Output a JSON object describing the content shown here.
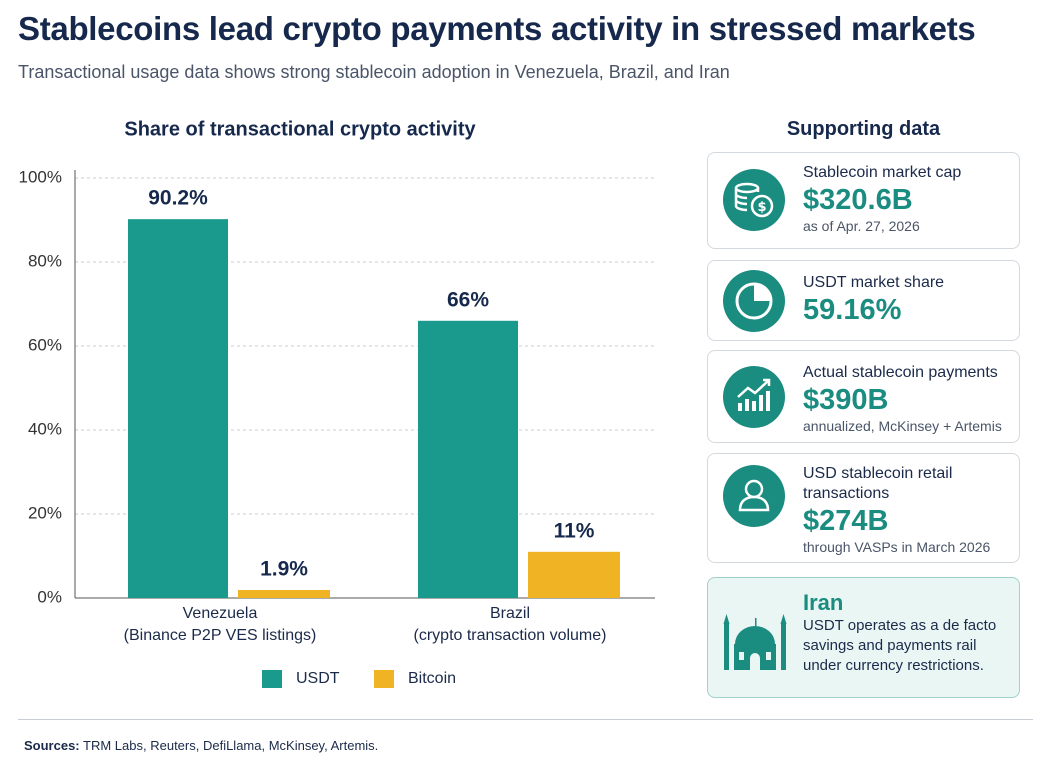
{
  "header": {
    "title": "Stablecoins lead crypto payments activity in stressed markets",
    "subtitle": "Transactional usage data shows strong stablecoin adoption in Venezuela, Brazil, and Iran"
  },
  "chart_data": {
    "type": "bar",
    "title": "Share of transactional crypto activity",
    "categories": [
      "Venezuela",
      "Brazil"
    ],
    "category_notes": [
      "(Binance P2P VES listings)",
      "(crypto transaction volume)"
    ],
    "series": [
      {
        "name": "USDT",
        "color": "#1a9a8c",
        "values": [
          90.2,
          66
        ],
        "value_labels": [
          "90.2%",
          "66%"
        ]
      },
      {
        "name": "Bitcoin",
        "color": "#f0b323",
        "values": [
          1.9,
          11
        ],
        "value_labels": [
          "1.9%",
          "11%"
        ]
      }
    ],
    "ylim": [
      0,
      100
    ],
    "yticks": [
      {
        "value": 0,
        "label": "0%"
      },
      {
        "value": 20,
        "label": "20%"
      },
      {
        "value": 40,
        "label": "40%"
      },
      {
        "value": 60,
        "label": "60%"
      },
      {
        "value": 80,
        "label": "80%"
      },
      {
        "value": 100,
        "label": "100%"
      }
    ],
    "grid": true,
    "legend": "bottom"
  },
  "supporting": {
    "title": "Supporting data",
    "cards": [
      {
        "label": "Stablecoin market cap",
        "value": "$320.6B",
        "note": "as of Apr. 27, 2026"
      },
      {
        "label": "USDT market share",
        "value": "59.16%"
      },
      {
        "label": "Actual stablecoin payments",
        "value": "$390B",
        "note": "annualized, McKinsey + Artemis"
      },
      {
        "label": "USD stablecoin retail transactions",
        "value": "$274B",
        "note": "through VASPs in March 2026"
      }
    ],
    "iran": {
      "title": "Iran",
      "lines": [
        "USDT operates as a de facto",
        "savings and payments rail",
        "under currency restrictions."
      ]
    }
  },
  "sources": {
    "label": "Sources:",
    "text": "TRM Labs, Reuters, DefiLlama, McKinsey, Artemis."
  }
}
